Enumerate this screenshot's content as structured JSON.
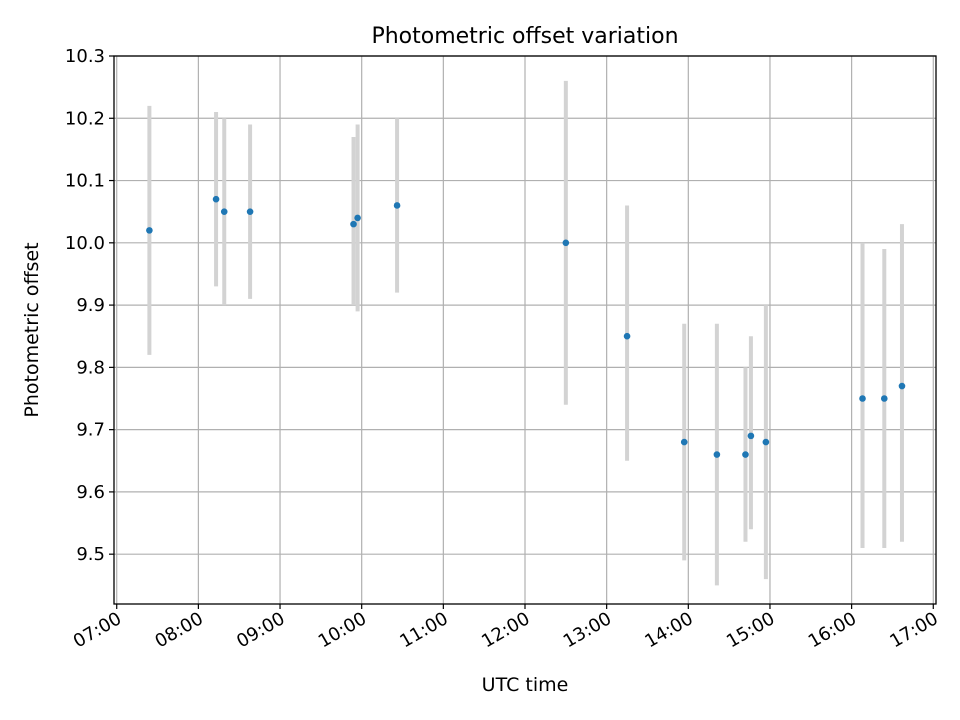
{
  "chart_data": {
    "type": "scatter",
    "title": "Photometric offset variation",
    "xlabel": "UTC time",
    "ylabel": "Photometric offset",
    "grid": true,
    "x_tick_labels": [
      "07:00",
      "08:00",
      "09:00",
      "10:00",
      "11:00",
      "12:00",
      "13:00",
      "14:00",
      "15:00",
      "16:00",
      "17:00"
    ],
    "y_tick_labels": [
      "9.5",
      "9.6",
      "9.7",
      "9.8",
      "9.9",
      "10.0",
      "10.1",
      "10.2",
      "10.3"
    ],
    "xlim": [
      "06:58",
      "17:02"
    ],
    "ylim": [
      9.42,
      10.3
    ],
    "colors": {
      "point": "#1f77b4",
      "errorbar": "#d3d3d3",
      "grid": "#b0b0b0"
    },
    "points": [
      {
        "time": "07:24",
        "y": 10.02,
        "ylow": 9.82,
        "yhigh": 10.22
      },
      {
        "time": "08:13",
        "y": 10.07,
        "ylow": 9.93,
        "yhigh": 10.21
      },
      {
        "time": "08:19",
        "y": 10.05,
        "ylow": 9.9,
        "yhigh": 10.2
      },
      {
        "time": "08:38",
        "y": 10.05,
        "ylow": 9.91,
        "yhigh": 10.19
      },
      {
        "time": "09:54",
        "y": 10.03,
        "ylow": 9.9,
        "yhigh": 10.17
      },
      {
        "time": "09:57",
        "y": 10.04,
        "ylow": 9.89,
        "yhigh": 10.19
      },
      {
        "time": "10:26",
        "y": 10.06,
        "ylow": 9.92,
        "yhigh": 10.2
      },
      {
        "time": "12:30",
        "y": 10.0,
        "ylow": 9.74,
        "yhigh": 10.26
      },
      {
        "time": "13:15",
        "y": 9.85,
        "ylow": 9.65,
        "yhigh": 10.06
      },
      {
        "time": "13:57",
        "y": 9.68,
        "ylow": 9.49,
        "yhigh": 9.87
      },
      {
        "time": "14:21",
        "y": 9.66,
        "ylow": 9.45,
        "yhigh": 9.87
      },
      {
        "time": "14:42",
        "y": 9.66,
        "ylow": 9.52,
        "yhigh": 9.8
      },
      {
        "time": "14:46",
        "y": 9.69,
        "ylow": 9.54,
        "yhigh": 9.85
      },
      {
        "time": "14:57",
        "y": 9.68,
        "ylow": 9.46,
        "yhigh": 9.9
      },
      {
        "time": "16:08",
        "y": 9.75,
        "ylow": 9.51,
        "yhigh": 10.0
      },
      {
        "time": "16:24",
        "y": 9.75,
        "ylow": 9.51,
        "yhigh": 9.99
      },
      {
        "time": "16:37",
        "y": 9.77,
        "ylow": 9.52,
        "yhigh": 10.03
      }
    ]
  }
}
